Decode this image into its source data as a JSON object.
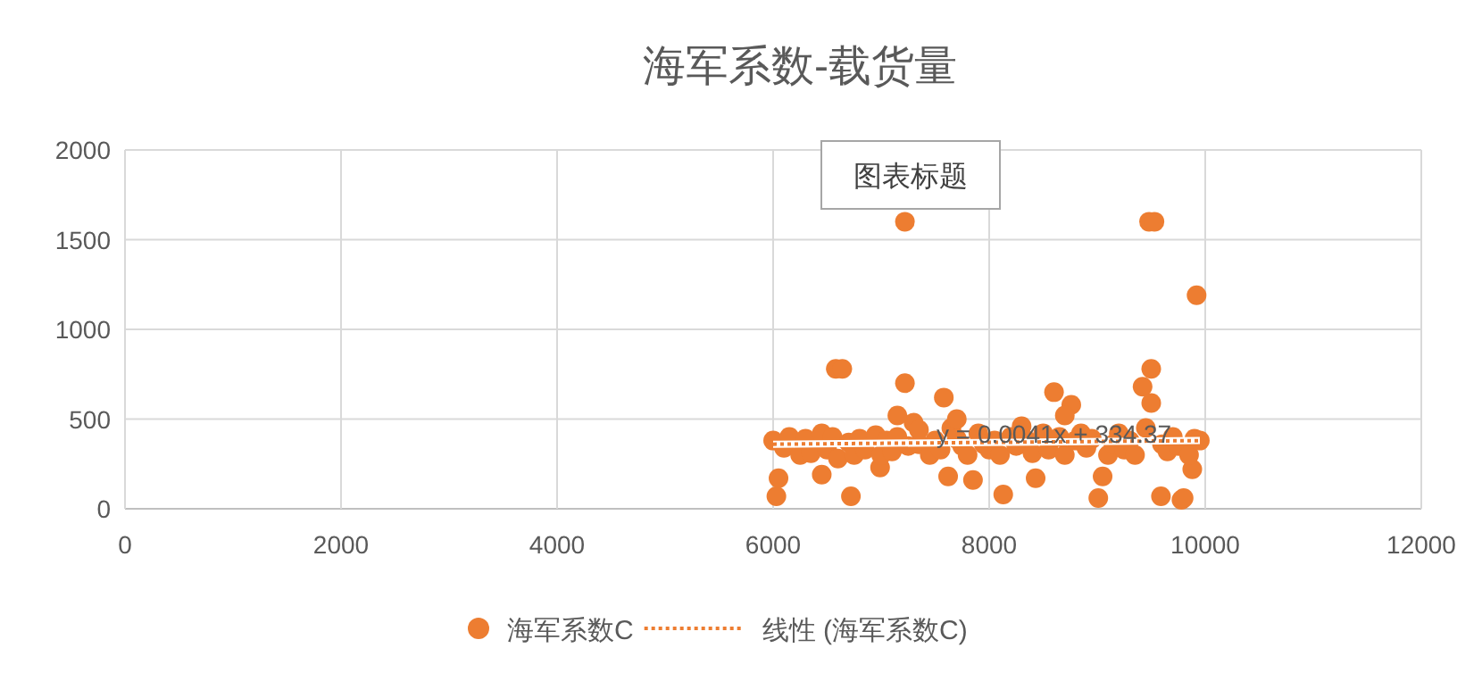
{
  "chart_data": {
    "type": "scatter",
    "title": "海军系数-载货量",
    "xlim": [
      0,
      12000
    ],
    "ylim": [
      0,
      2000
    ],
    "xticks": [
      0,
      2000,
      4000,
      6000,
      8000,
      10000,
      12000
    ],
    "yticks": [
      0,
      500,
      1000,
      1500,
      2000
    ],
    "grid": true,
    "legend": "bottom",
    "marker": "circle",
    "annotations": [
      "图表标题",
      {
        "text": "y = 0.0041x + 334.37",
        "x": 8600,
        "y": 420
      }
    ],
    "series": [
      {
        "name": "海军系数C",
        "color": "#ed7d31",
        "x": [
          7220,
          9480,
          9530,
          9920,
          6580,
          6640,
          7220,
          9500,
          9420,
          9500,
          8600,
          7580,
          8760,
          6030,
          6720,
          8130,
          9010,
          9590,
          9780,
          9800,
          6050,
          6450,
          7620,
          7850,
          8430,
          9050,
          9880,
          6990,
          6000,
          6100,
          6150,
          6250,
          6300,
          6350,
          6450,
          6500,
          6550,
          6600,
          6700,
          6750,
          6800,
          6850,
          6950,
          7000,
          7050,
          7100,
          7150,
          7250,
          7300,
          7350,
          7450,
          7500,
          7550,
          7650,
          7700,
          7750,
          7800,
          7900,
          7950,
          8000,
          8050,
          8100,
          8200,
          8250,
          8350,
          8400,
          8500,
          8550,
          8650,
          8700,
          8800,
          8850,
          8900,
          8950,
          9100,
          9150,
          9200,
          9250,
          9300,
          9350,
          9450,
          9600,
          9650,
          9700,
          9750,
          9850,
          9900,
          9950,
          7150,
          7350,
          7700,
          8300,
          8700
        ],
        "values": [
          1600,
          1600,
          1600,
          1190,
          780,
          780,
          700,
          780,
          680,
          590,
          650,
          620,
          580,
          70,
          70,
          80,
          60,
          70,
          50,
          60,
          170,
          190,
          180,
          160,
          170,
          180,
          220,
          230,
          380,
          340,
          400,
          300,
          390,
          310,
          420,
          330,
          400,
          280,
          370,
          300,
          390,
          330,
          410,
          300,
          380,
          320,
          400,
          350,
          480,
          360,
          300,
          380,
          330,
          450,
          390,
          350,
          300,
          420,
          360,
          330,
          380,
          300,
          400,
          350,
          380,
          310,
          420,
          330,
          400,
          300,
          380,
          420,
          340,
          390,
          300,
          360,
          420,
          330,
          380,
          300,
          450,
          360,
          320,
          400,
          350,
          300,
          390,
          380,
          520,
          440,
          500,
          460,
          520
        ]
      },
      {
        "name": "线性 (海军系数C)",
        "type": "line",
        "color": "#ed7d31",
        "line_style": "dotted",
        "marker": "none",
        "x": [
          6000,
          9950
        ],
        "values": [
          360,
          380
        ]
      }
    ]
  }
}
